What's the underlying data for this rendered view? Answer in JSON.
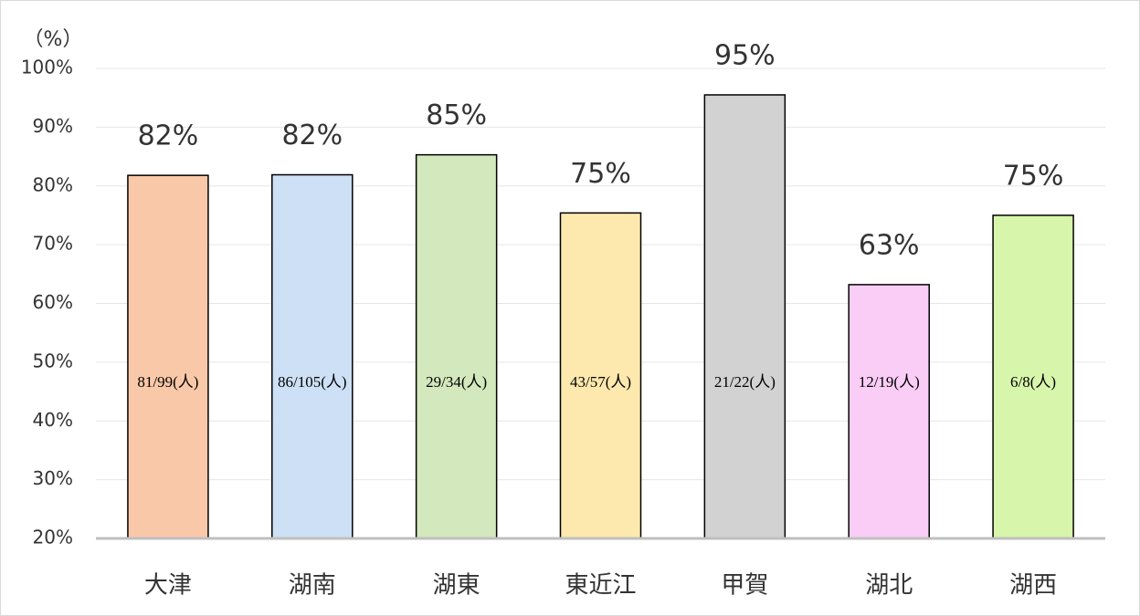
{
  "chart_data": {
    "type": "bar",
    "y_axis_label": "（%）",
    "categories": [
      "大津",
      "湖南",
      "湖東",
      "東近江",
      "甲賀",
      "湖北",
      "湖西"
    ],
    "values": [
      81.8,
      81.9,
      85.3,
      75.4,
      95.5,
      63.2,
      75
    ],
    "value_labels": [
      "82%",
      "82%",
      "85%",
      "75%",
      "95%",
      "63%",
      "75%"
    ],
    "count_labels": [
      "81/99(人)",
      "86/105(人)",
      "29/34(人)",
      "43/57(人)",
      "21/22(人)",
      "12/19(人)",
      "6/8(人)"
    ],
    "colors": [
      "#f9c8a8",
      "#cde0f5",
      "#d3e8bd",
      "#fde8ad",
      "#d2d2d2",
      "#f9cdf6",
      "#d8f5ac"
    ],
    "ylim": [
      20,
      100
    ],
    "yticks": [
      {
        "value": 20,
        "label": "20%"
      },
      {
        "value": 30,
        "label": "30%"
      },
      {
        "value": 40,
        "label": "40%"
      },
      {
        "value": 50,
        "label": "50%"
      },
      {
        "value": 60,
        "label": "60%"
      },
      {
        "value": 70,
        "label": "70%"
      },
      {
        "value": 80,
        "label": "80%"
      },
      {
        "value": 90,
        "label": "90%"
      },
      {
        "value": 100,
        "label": "100%"
      }
    ],
    "grid": true
  }
}
